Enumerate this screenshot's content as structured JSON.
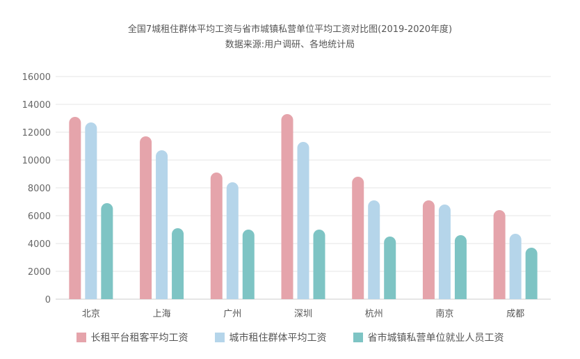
{
  "chart_data": {
    "type": "bar",
    "title": "全国7城租住群体平均工资与省市城镇私营单位平均工资对比图(2019-2020年度)",
    "subtitle": "数据来源:用户调研、各地统计局",
    "categories": [
      "北京",
      "上海",
      "广州",
      "深圳",
      "杭州",
      "南京",
      "成都"
    ],
    "ylim": [
      0,
      16000
    ],
    "yticks": [
      0,
      2000,
      4000,
      6000,
      8000,
      10000,
      12000,
      14000,
      16000
    ],
    "grid": true,
    "legend_position": "bottom",
    "series": [
      {
        "name": "长租平台租客平均工资",
        "color": "#e5a4ab",
        "values": [
          13100,
          11700,
          9100,
          13300,
          8800,
          7100,
          6400
        ]
      },
      {
        "name": "城市租住群体平均工资",
        "color": "#b5d5ea",
        "values": [
          12700,
          10700,
          8400,
          11300,
          7100,
          6800,
          4700
        ]
      },
      {
        "name": "省市城镇私营单位就业人员工资",
        "color": "#7ec4c4",
        "values": [
          6900,
          5100,
          5000,
          5000,
          4500,
          4600,
          3700
        ]
      }
    ]
  }
}
